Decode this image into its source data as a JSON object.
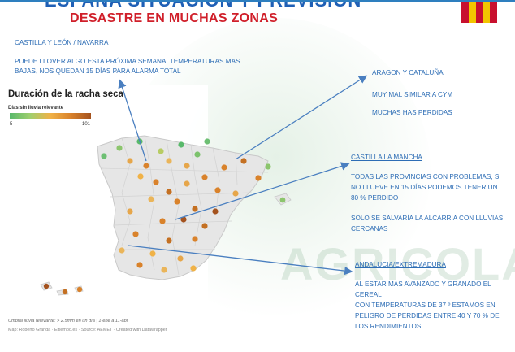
{
  "header": {
    "title": "ESPAÑA SITUACIÓN Y PREVISIÓN",
    "subtitle": "DESASTRE EN MUCHAS ZONAS"
  },
  "colors": {
    "title_blue": "#1f5fb5",
    "subtitle_red": "#d01f2a",
    "text_blue": "#2d6db5",
    "arrow_blue": "#4a7fc0"
  },
  "watermark": "AGRICOLA",
  "castilla_leon": {
    "heading": "CASTILLA Y LEÓN / NAVARRA",
    "body_line1": "PUEDE LLOVER ALGO ESTA PRÓXIMA SEMANA, TEMPERATURAS MAS",
    "body_line2": "BAJAS, NOS QUEDAN 15 DÍAS PARA ALARMA TOTAL"
  },
  "aragon": {
    "heading": "ARAGON Y CATALUÑA",
    "line1": "MUY MAL SIMILAR A CYM",
    "line2": "MUCHAS HAS PERDIDAS"
  },
  "castilla_mancha": {
    "heading": "CASTILLA LA MANCHA",
    "line1": "TODAS LAS PROVINCIAS CON PROBLEMAS, SI",
    "line2": "NO LLUEVE EN 15 DÍAS PODEMOS TENER UN",
    "line3": "80 % PERDIDO",
    "line4": "SOLO SE SALVARÍA LA ALCARRIA CON LLUVIAS",
    "line5": "CERCANAS"
  },
  "andalucia": {
    "heading": "ANDALUCIA/EXTREMADURA",
    "line1": "AL ESTAR MAS AVANZADO Y GRANADO EL",
    "line2": "CEREAL",
    "line3": "CON TEMPERATURAS DE 37 º ESTAMOS EN",
    "line4": "PELIGRO DE PERDIDAS ENTRE 40 Y 70 % DE",
    "line5": "LOS RENDIMIENTOS"
  },
  "map": {
    "title": "Duración de la racha seca",
    "legend_label": "Días sin lluvia relevante",
    "legend_min": "5",
    "legend_max": "101",
    "footnote": "Umbral lluvia relevante: > 2.5mm en un día | 1-ene a 11-abr",
    "credit": "Map: Roberto Granda · Eltiempo.es · Source: AEMET · Created with Datawrapper"
  }
}
